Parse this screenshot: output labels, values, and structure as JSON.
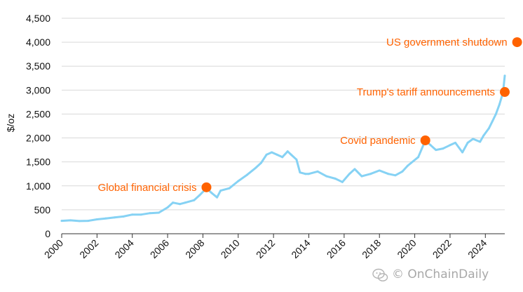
{
  "chart_data": {
    "type": "line",
    "title": "",
    "xlabel": "",
    "ylabel": "$/oz",
    "xlim": [
      2000,
      2025.1
    ],
    "ylim": [
      0,
      4500
    ],
    "grid": true,
    "line_color": "#86d2f4",
    "marker_color": "#ff6200",
    "annotation_color": "#ff6200",
    "x_ticks": [
      2000,
      2002,
      2004,
      2006,
      2008,
      2010,
      2012,
      2014,
      2016,
      2018,
      2020,
      2022,
      2024
    ],
    "x_tick_labels": [
      "2000",
      "2002",
      "2004",
      "2006",
      "2008",
      "2010",
      "2012",
      "2014",
      "2016",
      "2018",
      "2020",
      "2022",
      "2024"
    ],
    "y_ticks": [
      0,
      500,
      1000,
      1500,
      2000,
      2500,
      3000,
      3500,
      4000,
      4500
    ],
    "y_tick_labels": [
      "0",
      "500",
      "1,000",
      "1,500",
      "2,000",
      "2,500",
      "3,000",
      "3,500",
      "4,000",
      "4,500"
    ],
    "series": [
      {
        "x": [
          2000,
          2000.5,
          2001,
          2001.5,
          2002,
          2002.5,
          2003,
          2003.5,
          2004,
          2004.5,
          2005,
          2005.5,
          2006,
          2006.3,
          2006.7,
          2007,
          2007.5,
          2007.8,
          2008.2,
          2008.5,
          2008.8,
          2009,
          2009.5,
          2010,
          2010.5,
          2011,
          2011.3,
          2011.6,
          2011.9,
          2012.2,
          2012.5,
          2012.8,
          2013,
          2013.3,
          2013.5,
          2013.8,
          2014,
          2014.5,
          2015,
          2015.5,
          2015.9,
          2016.3,
          2016.6,
          2017,
          2017.5,
          2018,
          2018.5,
          2018.9,
          2019.3,
          2019.6,
          2019.8,
          2020.2,
          2020.6,
          2020.9,
          2021.2,
          2021.6,
          2022,
          2022.3,
          2022.7,
          2023,
          2023.3,
          2023.7,
          2023.9,
          2024.2,
          2024.4,
          2024.6,
          2024.8,
          2025,
          2025.1
        ],
        "y": [
          270,
          280,
          265,
          270,
          300,
          320,
          340,
          360,
          400,
          400,
          430,
          440,
          550,
          650,
          620,
          650,
          700,
          800,
          950,
          850,
          760,
          900,
          950,
          1100,
          1230,
          1380,
          1480,
          1650,
          1700,
          1650,
          1600,
          1720,
          1650,
          1550,
          1280,
          1250,
          1250,
          1300,
          1200,
          1150,
          1080,
          1250,
          1350,
          1200,
          1250,
          1320,
          1250,
          1220,
          1300,
          1420,
          1480,
          1600,
          1950,
          1850,
          1750,
          1780,
          1850,
          1900,
          1700,
          1900,
          1980,
          1920,
          2050,
          2200,
          2350,
          2500,
          2700,
          2950,
          3300
        ],
        "name": ""
      }
    ],
    "annotations": [
      {
        "label": "Global financial crisis",
        "x": 2008.2,
        "y": 970,
        "side": "left"
      },
      {
        "label": "Covid pandemic",
        "x": 2020.6,
        "y": 1950,
        "side": "left"
      },
      {
        "label": "Trump's tariff announcements",
        "x": 2025.1,
        "y": 2960,
        "side": "left"
      },
      {
        "label": "US government shutdown",
        "x": 2025.8,
        "y": 4000,
        "side": "left"
      }
    ],
    "watermark": "OnChainDaily",
    "watermark_icon": "wechat-icon"
  }
}
